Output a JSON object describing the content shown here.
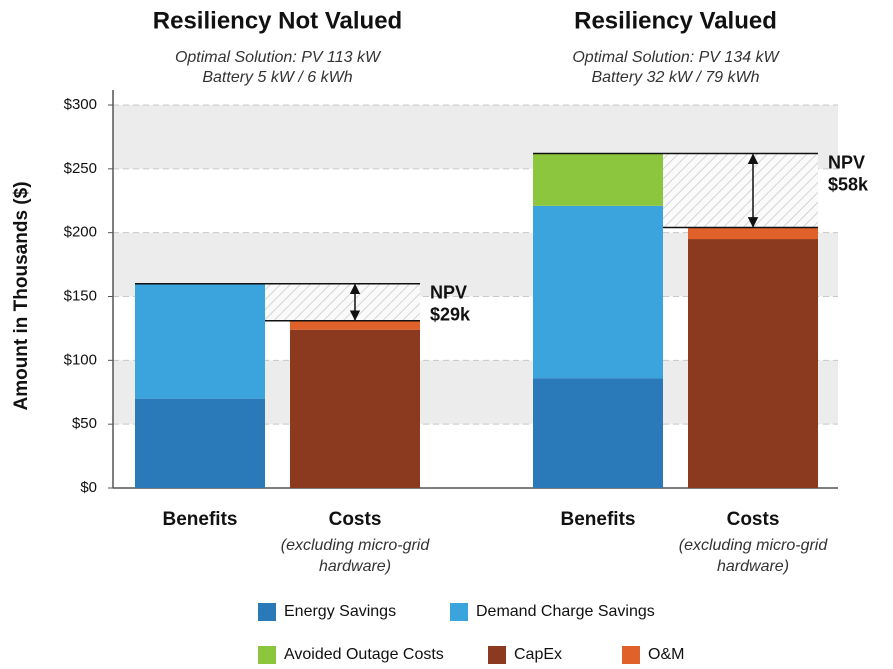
{
  "chart_data": {
    "type": "bar",
    "stacked": true,
    "ylabel": "Amount in Thousands ($)",
    "ylim": [
      0,
      300
    ],
    "yticks": [
      {
        "value": 0,
        "label": "$0"
      },
      {
        "value": 50,
        "label": "$50"
      },
      {
        "value": 100,
        "label": "$100"
      },
      {
        "value": 150,
        "label": "$150"
      },
      {
        "value": 200,
        "label": "$200"
      },
      {
        "value": 250,
        "label": "$250"
      },
      {
        "value": 300,
        "label": "$300"
      }
    ],
    "grid": true,
    "groups": [
      {
        "title": "Resiliency Not Valued",
        "subtitle": [
          "Optimal Solution: PV 113 kW",
          "Battery 5 kW / 6 kWh"
        ]
      },
      {
        "title": "Resiliency Valued",
        "subtitle": [
          "Optimal Solution: PV 134 kW",
          "Battery 32 kW / 79 kWh"
        ]
      }
    ],
    "categories": [
      "Benefits",
      "Costs",
      "Benefits",
      "Costs"
    ],
    "category_notes": [
      null,
      [
        "(excluding micro-grid",
        "hardware)"
      ],
      null,
      [
        "(excluding micro-grid",
        "hardware)"
      ]
    ],
    "series": [
      {
        "name": "Energy Savings",
        "color": "#2a79b8",
        "values": [
          70,
          null,
          86,
          null
        ]
      },
      {
        "name": "Demand Charge Savings",
        "color": "#3ca4dc",
        "values": [
          90,
          null,
          135,
          null
        ]
      },
      {
        "name": "Avoided Outage Costs",
        "color": "#8cc63f",
        "values": [
          null,
          null,
          41,
          null
        ]
      },
      {
        "name": "CapEx",
        "color": "#8b3a1f",
        "values": [
          null,
          124,
          null,
          195
        ]
      },
      {
        "name": "O&M",
        "color": "#e0612a",
        "values": [
          null,
          7,
          null,
          9
        ]
      }
    ],
    "annotations": [
      {
        "text": "NPV",
        "value": 29,
        "value_label": "$29k"
      },
      {
        "text": "NPV",
        "value": 58,
        "value_label": "$58k"
      }
    ]
  }
}
